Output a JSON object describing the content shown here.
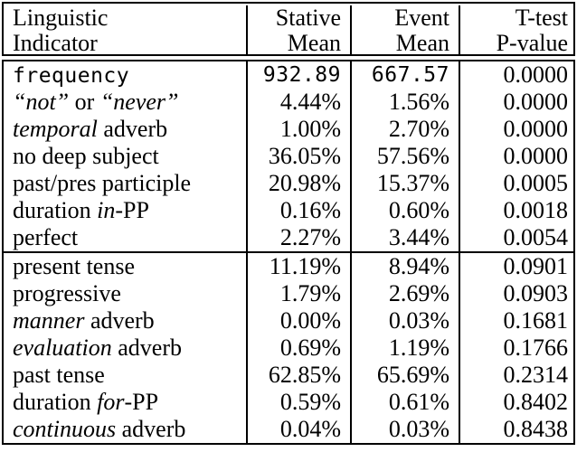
{
  "colors": {
    "border": "#000000",
    "background": "#ffffff",
    "text": "#000000"
  },
  "table": {
    "header": {
      "col1_line1": "Linguistic",
      "col1_line2": "Indicator",
      "col2_line1": "Stative",
      "col2_line2": "Mean",
      "col3_line1": "Event",
      "col3_line2": "Mean",
      "col4_line1": "T-test",
      "col4_line2": "P-value"
    },
    "sections": [
      {
        "rows": [
          {
            "indicator": [
              {
                "text": "frequency",
                "style": "mono"
              }
            ],
            "stative": "932.89",
            "event": "667.57",
            "pvalue": "0.0000",
            "num_font": "mono"
          },
          {
            "indicator": [
              {
                "text": "“not”",
                "style": "italic"
              },
              {
                "text": " or ",
                "style": "roman"
              },
              {
                "text": "“never”",
                "style": "italic"
              }
            ],
            "stative": "4.44%",
            "event": "1.56%",
            "pvalue": "0.0000"
          },
          {
            "indicator": [
              {
                "text": "temporal",
                "style": "italic"
              },
              {
                "text": " adverb",
                "style": "roman"
              }
            ],
            "stative": "1.00%",
            "event": "2.70%",
            "pvalue": "0.0000"
          },
          {
            "indicator": [
              {
                "text": "no deep subject",
                "style": "roman"
              }
            ],
            "stative": "36.05%",
            "event": "57.56%",
            "pvalue": "0.0000"
          },
          {
            "indicator": [
              {
                "text": "past/pres participle",
                "style": "roman"
              }
            ],
            "stative": "20.98%",
            "event": "15.37%",
            "pvalue": "0.0005"
          },
          {
            "indicator": [
              {
                "text": "duration ",
                "style": "roman"
              },
              {
                "text": "in",
                "style": "italic"
              },
              {
                "text": "-PP",
                "style": "roman"
              }
            ],
            "stative": "0.16%",
            "event": "0.60%",
            "pvalue": "0.0018"
          },
          {
            "indicator": [
              {
                "text": "perfect",
                "style": "roman"
              }
            ],
            "stative": "2.27%",
            "event": "3.44%",
            "pvalue": "0.0054"
          }
        ]
      },
      {
        "rows": [
          {
            "indicator": [
              {
                "text": "present tense",
                "style": "roman"
              }
            ],
            "stative": "11.19%",
            "event": "8.94%",
            "pvalue": "0.0901"
          },
          {
            "indicator": [
              {
                "text": "progressive",
                "style": "roman"
              }
            ],
            "stative": "1.79%",
            "event": "2.69%",
            "pvalue": "0.0903"
          },
          {
            "indicator": [
              {
                "text": "manner",
                "style": "italic"
              },
              {
                "text": " adverb",
                "style": "roman"
              }
            ],
            "stative": "0.00%",
            "event": "0.03%",
            "pvalue": "0.1681"
          },
          {
            "indicator": [
              {
                "text": "evaluation",
                "style": "italic"
              },
              {
                "text": " adverb",
                "style": "roman"
              }
            ],
            "stative": "0.69%",
            "event": "1.19%",
            "pvalue": "0.1766"
          },
          {
            "indicator": [
              {
                "text": "past tense",
                "style": "roman"
              }
            ],
            "stative": "62.85%",
            "event": "65.69%",
            "pvalue": "0.2314"
          },
          {
            "indicator": [
              {
                "text": "duration ",
                "style": "roman"
              },
              {
                "text": "for",
                "style": "italic"
              },
              {
                "text": "-PP",
                "style": "roman"
              }
            ],
            "stative": "0.59%",
            "event": "0.61%",
            "pvalue": "0.8402"
          },
          {
            "indicator": [
              {
                "text": "continuous",
                "style": "italic"
              },
              {
                "text": " adverb",
                "style": "roman"
              }
            ],
            "stative": "0.04%",
            "event": "0.03%",
            "pvalue": "0.8438"
          }
        ]
      }
    ]
  }
}
